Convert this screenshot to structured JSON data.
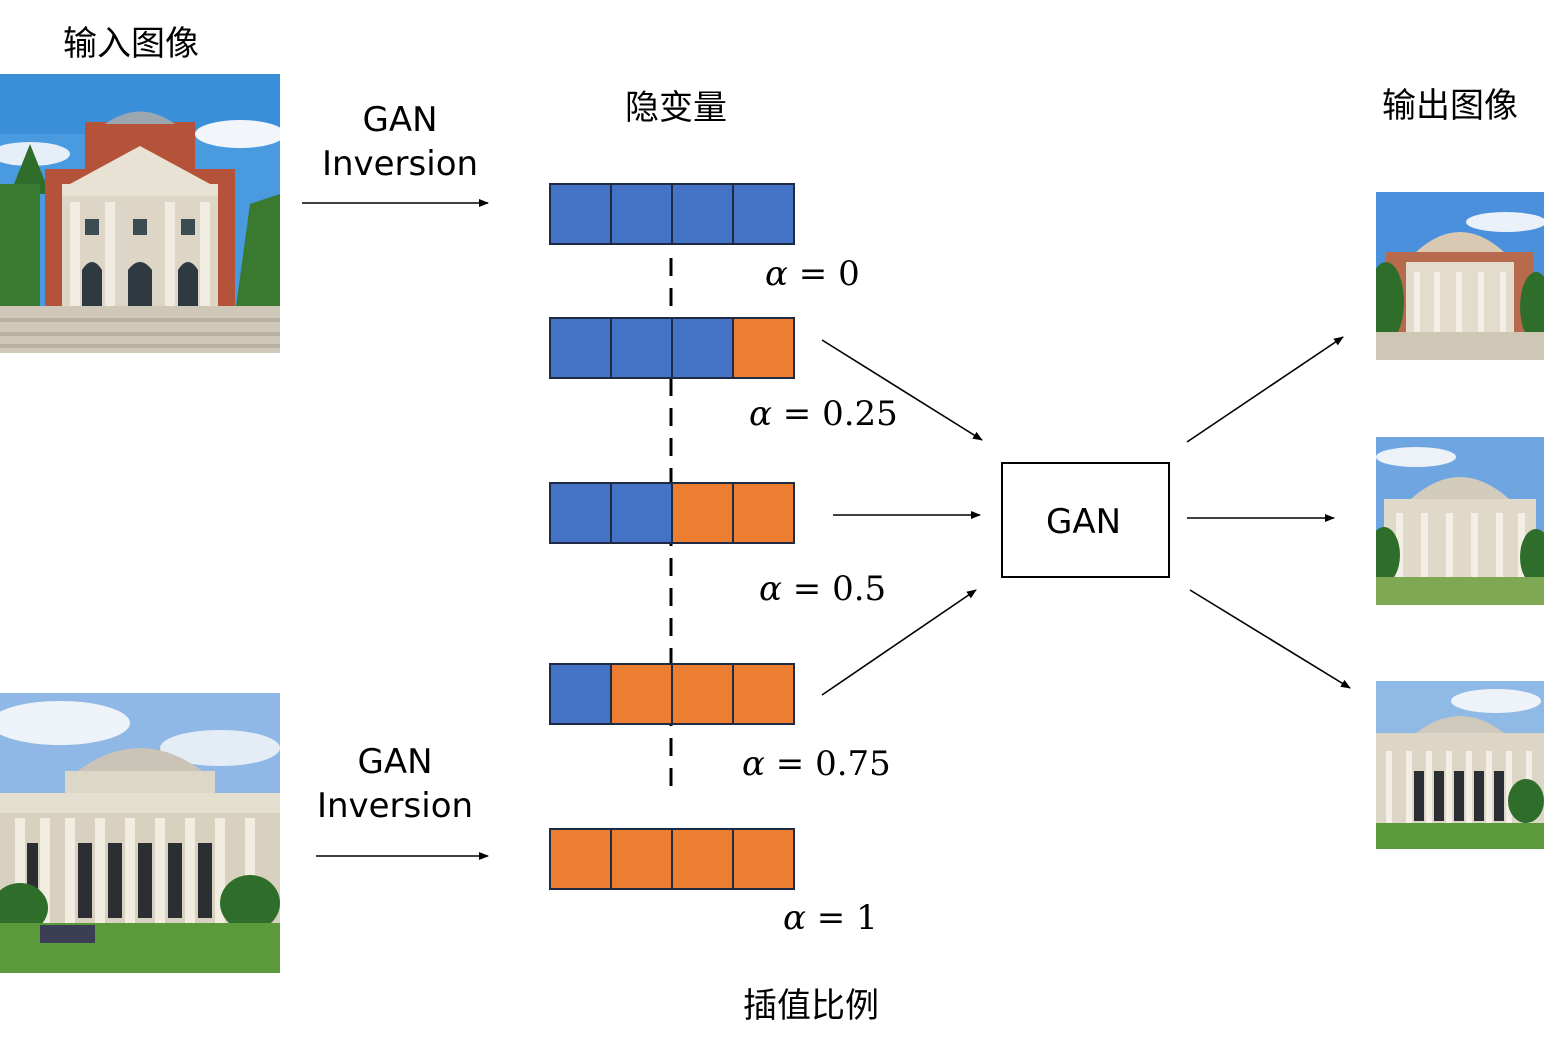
{
  "headings": {
    "input_images": "输入图像",
    "latent": "隐变量",
    "output_images": "输出图像",
    "interp_ratio": "插值比例"
  },
  "inversion": {
    "top_line1": "GAN",
    "top_line2": "Inversion",
    "bottom_line1": "GAN",
    "bottom_line2": "Inversion"
  },
  "generator": {
    "label": "GAN"
  },
  "vectors": [
    {
      "alpha_symbol": "α",
      "alpha_text": " = 0",
      "cells": [
        "blue",
        "blue",
        "blue",
        "blue"
      ]
    },
    {
      "alpha_symbol": "α",
      "alpha_text": " = 0.25",
      "cells": [
        "blue",
        "blue",
        "blue",
        "orange"
      ]
    },
    {
      "alpha_symbol": "α",
      "alpha_text": " = 0.5",
      "cells": [
        "blue",
        "blue",
        "orange",
        "orange"
      ]
    },
    {
      "alpha_symbol": "α",
      "alpha_text": " = 0.75",
      "cells": [
        "blue",
        "orange",
        "orange",
        "orange"
      ]
    },
    {
      "alpha_symbol": "α",
      "alpha_text": " = 1",
      "cells": [
        "orange",
        "orange",
        "orange",
        "orange"
      ]
    }
  ],
  "colors": {
    "blue": "#4472C4",
    "orange": "#ED7D31",
    "cell_border": "#1f2a44",
    "sky": "#5aa0e0",
    "brick": "#b5533a",
    "stone": "#e8e2d4",
    "grass": "#5a9a3a",
    "tree": "#2f6e2a"
  },
  "images": {
    "input_top": "brick-auditorium-photo",
    "input_bottom": "domed-building-photo",
    "outputs": [
      "output-image-1",
      "output-image-2",
      "output-image-3"
    ]
  }
}
